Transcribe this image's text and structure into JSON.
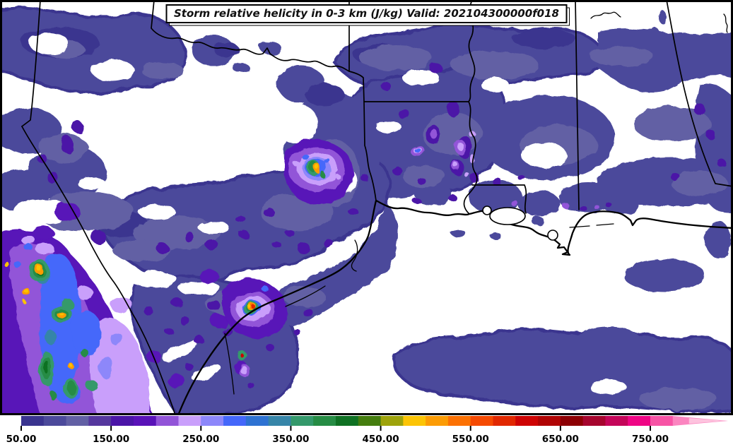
{
  "title": {
    "text": "Storm relative helicity in 0-3 km (J/kg) Valid: 202104300000f018"
  },
  "field": {
    "quantity": "Storm relative helicity in 0-3 km",
    "units": "J/kg",
    "valid": "202104300000f018"
  },
  "palette": {
    "L1": "#3a348f",
    "L2": "#4c4a9b",
    "L3": "#6260a4",
    "L4": "#55379e",
    "L5": "#4b15a7",
    "L6": "#5912b8",
    "L7": "#9254d8",
    "L8": "#c99ffb",
    "L9": "#8d87fa",
    "L10": "#4467fa",
    "L11": "#2e72d2",
    "L12": "#3685a8",
    "L13": "#34996b",
    "L14": "#268c44",
    "L15": "#0f7123",
    "L16": "#447d0e",
    "L17": "#9ea30b",
    "L18": "#fcc405",
    "L19": "#fc9c05",
    "L20": "#fc7103",
    "L21": "#f54a02",
    "L22": "#e12801",
    "L23": "#ce0404",
    "L24": "#b00404",
    "L25": "#8d0004",
    "L26": "#a6052e",
    "L27": "#c40559",
    "L28": "#ef0585",
    "L29": "#f754a5",
    "L30": "#fb85c0",
    "Lext": "#fdc3de",
    "line": "#000000",
    "background": "#ffffff"
  },
  "colorbar": {
    "min": 50,
    "level_step": 25,
    "ticks": [
      {
        "value": 50,
        "label": "50.00"
      },
      {
        "value": 150,
        "label": "150.00"
      },
      {
        "value": 250,
        "label": "250.00"
      },
      {
        "value": 350,
        "label": "350.00"
      },
      {
        "value": 450,
        "label": "450.00"
      },
      {
        "value": 550,
        "label": "550.00"
      },
      {
        "value": 650,
        "label": "650.00"
      },
      {
        "value": 750,
        "label": "750.00"
      }
    ],
    "segments": [
      {
        "from": 50,
        "to": 75,
        "color": "#3a348f"
      },
      {
        "from": 75,
        "to": 100,
        "color": "#4c4a9b"
      },
      {
        "from": 100,
        "to": 125,
        "color": "#6260a4"
      },
      {
        "from": 125,
        "to": 150,
        "color": "#55379e"
      },
      {
        "from": 150,
        "to": 175,
        "color": "#4b15a7"
      },
      {
        "from": 175,
        "to": 200,
        "color": "#5912b8"
      },
      {
        "from": 200,
        "to": 225,
        "color": "#9254d8"
      },
      {
        "from": 225,
        "to": 250,
        "color": "#c99ffb"
      },
      {
        "from": 250,
        "to": 275,
        "color": "#8d87fa"
      },
      {
        "from": 275,
        "to": 300,
        "color": "#4467fa"
      },
      {
        "from": 300,
        "to": 325,
        "color": "#2e72d2"
      },
      {
        "from": 325,
        "to": 350,
        "color": "#3685a8"
      },
      {
        "from": 350,
        "to": 375,
        "color": "#34996b"
      },
      {
        "from": 375,
        "to": 400,
        "color": "#268c44"
      },
      {
        "from": 400,
        "to": 425,
        "color": "#0f7123"
      },
      {
        "from": 425,
        "to": 450,
        "color": "#447d0e"
      },
      {
        "from": 450,
        "to": 475,
        "color": "#9ea30b"
      },
      {
        "from": 475,
        "to": 500,
        "color": "#fcc405"
      },
      {
        "from": 500,
        "to": 525,
        "color": "#fc9c05"
      },
      {
        "from": 525,
        "to": 550,
        "color": "#fc7103"
      },
      {
        "from": 550,
        "to": 575,
        "color": "#f54a02"
      },
      {
        "from": 575,
        "to": 600,
        "color": "#e12801"
      },
      {
        "from": 600,
        "to": 625,
        "color": "#ce0404"
      },
      {
        "from": 625,
        "to": 650,
        "color": "#b00404"
      },
      {
        "from": 650,
        "to": 675,
        "color": "#8d0004"
      },
      {
        "from": 675,
        "to": 700,
        "color": "#a6052e"
      },
      {
        "from": 700,
        "to": 725,
        "color": "#c40559"
      },
      {
        "from": 725,
        "to": 750,
        "color": "#ef0585"
      },
      {
        "from": 750,
        "to": 775,
        "color": "#f754a5"
      }
    ],
    "extend_from": 775,
    "extend_outer_color": "#fb85c0",
    "extend_inner_color": "#fdc3de",
    "extend_arrow": true
  },
  "chart_data": {
    "type": "filled_contour_map",
    "title": "Storm relative helicity in 0-3 km (J/kg) Valid: 202104300000f018",
    "units": "J/kg",
    "levels_start": 50,
    "levels_step": 25,
    "levels_end": 800,
    "colorbar_tick_labels": [
      "50.00",
      "150.00",
      "250.00",
      "350.00",
      "450.00",
      "550.00",
      "650.00",
      "750.00"
    ],
    "legend_position": "bottom"
  }
}
